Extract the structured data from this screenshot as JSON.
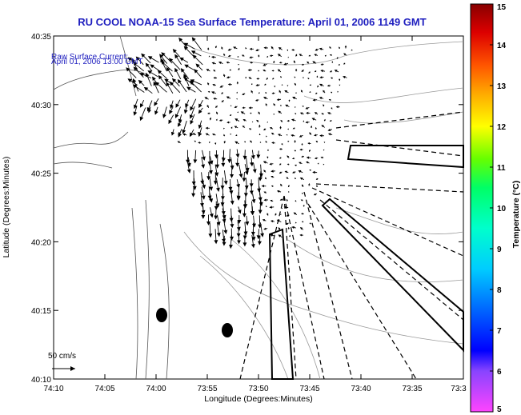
{
  "title": "RU COOL  NOAA-15  Sea Surface Temperature:  April 01, 2006 1149 GMT",
  "legend": {
    "line1": "Raw Surface Current:",
    "line2": "April 01, 2006 13:00 GMT",
    "scale_label": "50 cm/s"
  },
  "axes": {
    "xlabel": "Longitude (Degrees:Minutes)",
    "ylabel": "Latitude (Degrees:Minutes)",
    "x_ticks": [
      "74:10",
      "74:05",
      "74:00",
      "73:55",
      "73:50",
      "73:45",
      "73:40",
      "73:35",
      "73:3"
    ],
    "y_ticks": [
      "40:35",
      "40:30",
      "40:25",
      "40:20",
      "40:15",
      "40:10"
    ]
  },
  "colorbar": {
    "label": "Temperature (°C)",
    "ticks": [
      "15",
      "14",
      "13",
      "12",
      "11",
      "10",
      "9",
      "8",
      "7",
      "6",
      "5"
    ],
    "colors": [
      "#ff44ff",
      "#8844ff",
      "#0000ff",
      "#0088ff",
      "#00ccff",
      "#00ffcc",
      "#00ff66",
      "#66ff00",
      "#ccff00",
      "#ffff00",
      "#ffcc00",
      "#ff8800",
      "#ff3300",
      "#dd0000",
      "#880000"
    ]
  },
  "markers": [
    {
      "name": "station-marker-1",
      "lon": "73:58.7",
      "lat": "40:14.6"
    },
    {
      "name": "station-marker-2",
      "lon": "73:52.6",
      "lat": "40:13.6"
    }
  ]
}
